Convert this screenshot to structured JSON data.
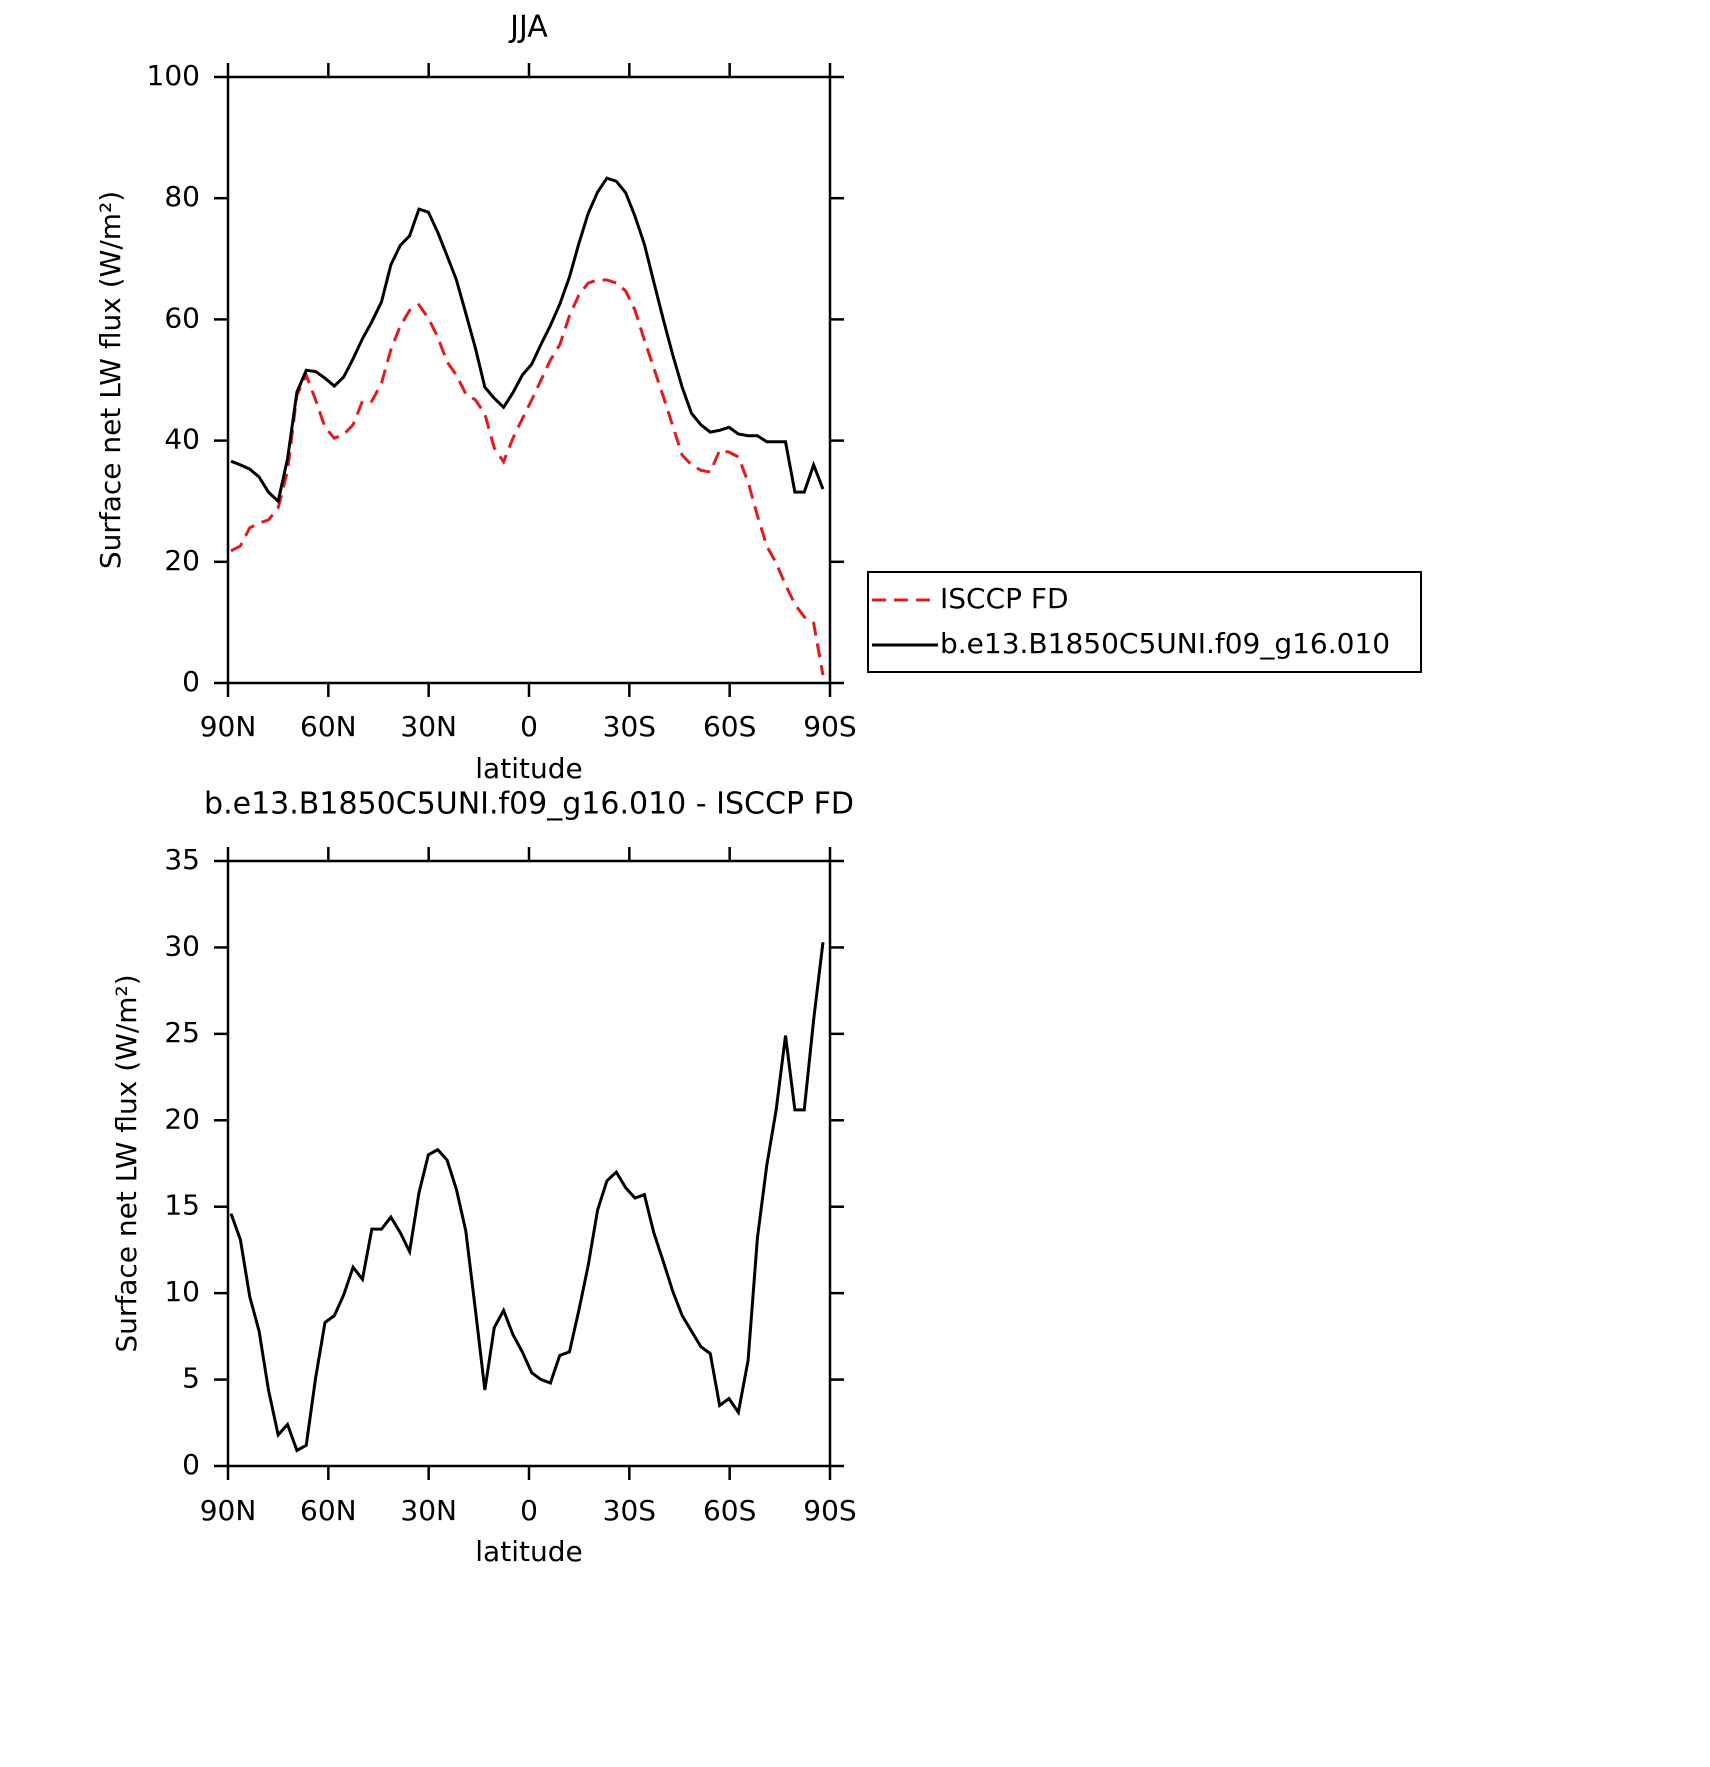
{
  "chart_data": [
    {
      "type": "line",
      "title": "JJA",
      "xlabel": "latitude",
      "ylabel": "Surface net LW flux (W/m²)",
      "xlim": [
        90,
        -90
      ],
      "xticks": [
        {
          "value": 90,
          "label": "90N"
        },
        {
          "value": 60,
          "label": "60N"
        },
        {
          "value": 30,
          "label": "30N"
        },
        0,
        {
          "value": -30,
          "label": "30S"
        },
        {
          "value": -60,
          "label": "60S"
        },
        {
          "value": -90,
          "label": "90S"
        }
      ],
      "ylim": [
        0,
        100
      ],
      "yticks": [
        0,
        20,
        40,
        60,
        80,
        100
      ],
      "legend": "right",
      "x": [
        89.1,
        86.3,
        83.5,
        80.7,
        77.9,
        75.0,
        72.2,
        69.4,
        66.6,
        63.8,
        61.0,
        58.2,
        55.4,
        52.6,
        49.8,
        47.0,
        44.1,
        41.3,
        38.5,
        35.7,
        32.9,
        30.1,
        27.3,
        24.5,
        21.7,
        18.9,
        16.0,
        13.2,
        10.4,
        7.6,
        4.8,
        2.0,
        -0.8,
        -3.6,
        -6.4,
        -9.2,
        -12.1,
        -14.9,
        -17.7,
        -20.5,
        -23.3,
        -26.1,
        -28.9,
        -31.7,
        -34.5,
        -37.3,
        -40.2,
        -43.0,
        -45.8,
        -48.6,
        -51.4,
        -54.2,
        -57.0,
        -59.8,
        -62.6,
        -65.5,
        -68.3,
        -71.1,
        -73.9,
        -76.7,
        -79.5,
        -82.3,
        -85.1,
        -87.9
      ],
      "series": [
        {
          "name": "ISCCP FD",
          "color": "#e41a1c",
          "line_style": "dashed",
          "values": [
            21.8,
            22.6,
            25.6,
            26.4,
            26.9,
            28.9,
            35,
            47.5,
            50.8,
            46.7,
            42.2,
            40.4,
            41,
            42.6,
            46.5,
            46.5,
            49.5,
            55,
            58.9,
            61.5,
            62.4,
            60.2,
            57.1,
            53,
            50.8,
            47.7,
            46.7,
            44.4,
            38.8,
            36.5,
            40.4,
            43.6,
            46.7,
            50,
            53.3,
            55.8,
            60.6,
            64,
            66,
            66.5,
            66.5,
            66,
            64.7,
            61.5,
            56.6,
            52,
            47.2,
            42.4,
            37.6,
            36,
            35.1,
            34.8,
            38.4,
            38.1,
            37.3,
            33.2,
            27.6,
            22.6,
            19.8,
            16.2,
            13,
            10.9,
            9.9,
            1.3
          ]
        },
        {
          "name": "b.e13.B1850C5UNI.f09_g16.010",
          "color": "#000000",
          "line_style": "solid",
          "values": [
            36.6,
            36,
            35.3,
            34,
            31.5,
            30,
            37,
            48,
            51.6,
            51.4,
            50.3,
            49,
            50.5,
            53.5,
            56.8,
            59.6,
            62.9,
            69,
            72.2,
            73.8,
            78.2,
            77.7,
            74.4,
            70.5,
            66.5,
            61,
            55.2,
            48.8,
            47,
            45.5,
            47.9,
            50.8,
            52.6,
            55.9,
            59,
            62.5,
            67,
            72.5,
            77.5,
            81,
            83.3,
            82.8,
            80.9,
            77,
            72.4,
            66.2,
            59.9,
            54.1,
            48.8,
            44.5,
            42.6,
            41.4,
            41.7,
            42.2,
            41.1,
            40.8,
            40.8,
            39.8,
            39.8,
            39.8,
            31.5,
            31.5,
            36,
            32
          ]
        }
      ]
    },
    {
      "type": "line",
      "title": "b.e13.B1850C5UNI.f09_g16.010 - ISCCP FD",
      "xlabel": "latitude",
      "ylabel": "Surface net LW flux (W/m²)",
      "xlim": [
        90,
        -90
      ],
      "xticks": [
        {
          "value": 90,
          "label": "90N"
        },
        {
          "value": 60,
          "label": "60N"
        },
        {
          "value": 30,
          "label": "30N"
        },
        0,
        {
          "value": -30,
          "label": "30S"
        },
        {
          "value": -60,
          "label": "60S"
        },
        {
          "value": -90,
          "label": "90S"
        }
      ],
      "ylim": [
        0,
        35
      ],
      "yticks": [
        0,
        5,
        10,
        15,
        20,
        25,
        30,
        35
      ],
      "x": [
        89.1,
        86.3,
        83.5,
        80.7,
        77.9,
        75.0,
        72.2,
        69.4,
        66.6,
        63.8,
        61.0,
        58.2,
        55.4,
        52.6,
        49.8,
        47.0,
        44.1,
        41.3,
        38.5,
        35.7,
        32.9,
        30.1,
        27.3,
        24.5,
        21.7,
        18.9,
        16.0,
        13.2,
        10.4,
        7.6,
        4.8,
        2.0,
        -0.8,
        -3.6,
        -6.4,
        -9.2,
        -12.1,
        -14.9,
        -17.7,
        -20.5,
        -23.3,
        -26.1,
        -28.9,
        -31.7,
        -34.5,
        -37.3,
        -40.2,
        -43.0,
        -45.8,
        -48.6,
        -51.4,
        -54.2,
        -57.0,
        -59.8,
        -62.6,
        -65.5,
        -68.3,
        -71.1,
        -73.9,
        -76.7,
        -79.5,
        -82.3,
        -85.1,
        -87.9
      ],
      "series": [
        {
          "color": "#000000",
          "line_style": "solid",
          "values": [
            14.6,
            13.1,
            9.8,
            7.8,
            4.4,
            1.8,
            2.4,
            0.9,
            1.2,
            5.1,
            8.3,
            8.7,
            9.9,
            11.5,
            10.8,
            13.7,
            13.7,
            14.4,
            13.5,
            12.4,
            15.8,
            18,
            18.3,
            17.7,
            16,
            13.6,
            9,
            4.4,
            8,
            9,
            7.6,
            6.6,
            5.4,
            5,
            4.8,
            6.4,
            6.6,
            9,
            11.6,
            14.8,
            16.5,
            17,
            16.1,
            15.5,
            15.7,
            13.5,
            11.8,
            10.1,
            8.7,
            7.8,
            6.9,
            6.5,
            3.5,
            3.9,
            3.1,
            6.1,
            13.2,
            17.4,
            20.6,
            24.9,
            20.6,
            20.6,
            25.8,
            30.3
          ]
        }
      ]
    }
  ]
}
